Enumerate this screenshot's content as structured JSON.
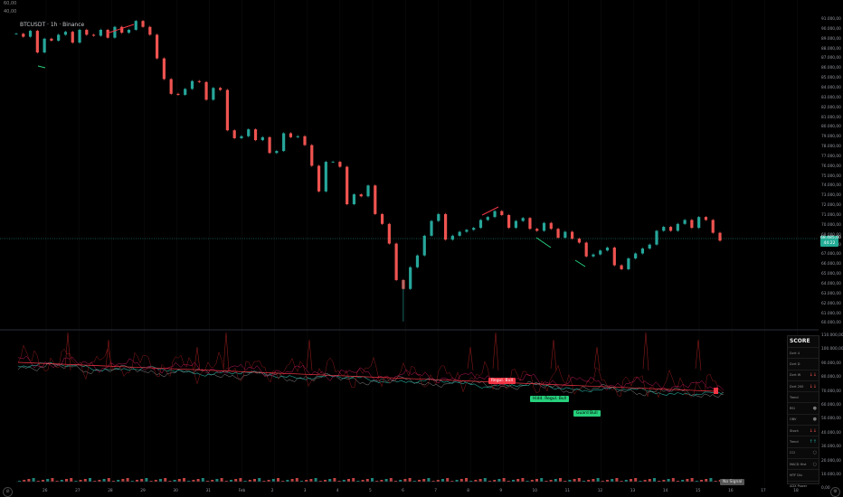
{
  "top_info": [
    "60,00",
    "40,00"
  ],
  "symbol_title": "BTCUSDT · 1h · Binance",
  "price_axis_labels": [
    "91.000,00",
    "90.000,00",
    "89.000,00",
    "88.000,00",
    "87.000,00",
    "86.000,00",
    "85.000,00",
    "84.000,00",
    "83.000,00",
    "82.000,00",
    "81.000,00",
    "80.000,00",
    "79.000,00",
    "78.000,00",
    "77.000,00",
    "76.000,00",
    "75.000,00",
    "74.000,00",
    "73.000,00",
    "72.000,00",
    "71.000,00",
    "70.000,00",
    "69.000,00",
    "68.000,00",
    "67.000,00",
    "66.000,00",
    "65.000,00",
    "64.000,00",
    "63.000,00",
    "62.000,00",
    "61.000,00",
    "60.000,00"
  ],
  "current_price": {
    "value": "68.485,00",
    "countdown": "44:22",
    "color": "#22ab94"
  },
  "indicator_axis_labels": [
    "110.000,00",
    "100.000,00",
    "90.000,00",
    "80.000,00",
    "70.000,00",
    "60.000,00",
    "50.000,00",
    "40.000,00",
    "30.000,00",
    "20.000,00",
    "10.000,00",
    "0,00"
  ],
  "time_axis_labels": [
    "26",
    "27",
    "28",
    "29",
    "30",
    "31",
    "Feb",
    "2",
    "3",
    "4",
    "5",
    "6",
    "7",
    "8",
    "9",
    "10",
    "11",
    "12",
    "13",
    "14",
    "15",
    "16",
    "17",
    "18"
  ],
  "markers": {
    "regular_bull": "Regul. Bull",
    "hidden_bull": "Hidd. Regul. Bull",
    "guard_bull": "Guard Bull",
    "no_signal": "No Signal"
  },
  "score_panel": {
    "title": "SCORE",
    "rows": [
      {
        "label": "Dvrt 4",
        "sym": ""
      },
      {
        "label": "Dvrt D",
        "sym": ""
      },
      {
        "label": "Dvrt W",
        "sym": "↓↓"
      },
      {
        "label": "Dvrt 200",
        "sym": "↓↓"
      },
      {
        "label": "Trend",
        "sym": ""
      },
      {
        "label": "RSI",
        "sym": "●"
      },
      {
        "label": "OBV",
        "sym": "●"
      },
      {
        "label": "Stoch",
        "sym": "↓↓"
      },
      {
        "label": "Trend",
        "sym": "↑↑"
      },
      {
        "label": "CCI",
        "sym": "○"
      },
      {
        "label": "MACD Hist",
        "sym": "○"
      },
      {
        "label": "MTF Div",
        "sym": ""
      },
      {
        "label": "ADX Power",
        "sym": ""
      }
    ]
  },
  "colors": {
    "up": "#26a69a",
    "down": "#ef5350",
    "line": "#f23645",
    "grid": "#1a1a1a"
  },
  "chart_data": {
    "type": "candlestick",
    "series": [
      {
        "values": [
          89500,
          89200,
          89800,
          87600,
          89000,
          88800,
          89400,
          89700,
          88600,
          89900,
          89400,
          89300,
          89900,
          89100,
          90200,
          89600,
          89900,
          90800,
          90200,
          89400,
          87000,
          84900,
          83400,
          83300,
          83900,
          84700,
          84600,
          82800,
          84000,
          83800,
          79700,
          78900,
          79100,
          79800,
          78700,
          79000,
          77400,
          77600,
          79400,
          79000,
          79100,
          78200,
          76100,
          73500,
          76500,
          76500,
          76000,
          72200,
          73200,
          73000,
          74100,
          71200,
          70200,
          68200,
          64500,
          63600,
          65800,
          67000,
          69000,
          70500,
          71200,
          68600,
          69000,
          69400,
          69600,
          69800,
          70600,
          70900,
          71500,
          71100,
          69800,
          70500,
          70800,
          69700,
          69500,
          70300,
          69700,
          68800,
          69400,
          68700,
          68300,
          66900,
          67100,
          67500,
          67800,
          66000,
          65600,
          66700,
          67200,
          67700,
          68100,
          69500,
          69900,
          69500,
          70200,
          70600,
          69800,
          70900,
          70600,
          69300,
          68500
        ]
      }
    ],
    "markers": [
      "Regul. Bull",
      "Hidd. Regul. Bull",
      "Guard Bull",
      "No Signal"
    ]
  }
}
